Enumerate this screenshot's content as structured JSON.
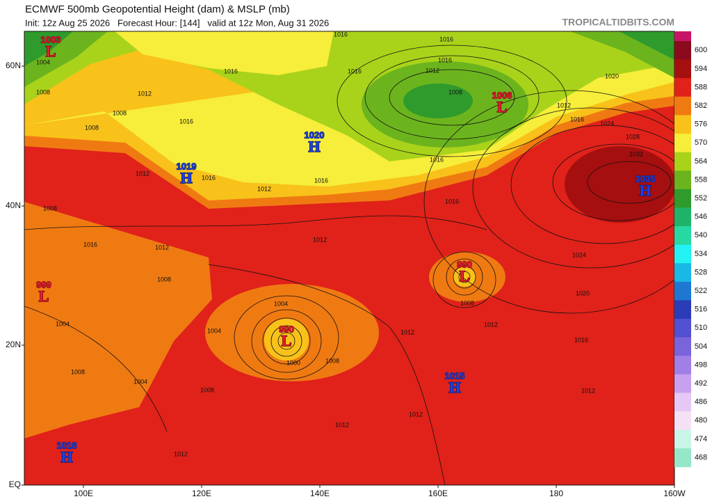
{
  "header": {
    "title": "ECMWF 500mb Geopotential Height (dam) & MSLP (mb)",
    "subtitle": "Init: 12z Aug 25 2026   Forecast Hour: [144]   valid at 12z Mon, Aug 31 2026",
    "credit": "TROPICALTIDBITS.COM"
  },
  "map": {
    "lat_labels": [
      "60N",
      "40N",
      "20N",
      "EQ"
    ],
    "lon_labels": [
      "100E",
      "120E",
      "140E",
      "160E",
      "180",
      "160W"
    ],
    "pressure_centers": [
      {
        "value": 1003,
        "symbol": "L"
      },
      {
        "value": 1006,
        "symbol": "L"
      },
      {
        "value": 1020,
        "symbol": "H"
      },
      {
        "value": 1019,
        "symbol": "H"
      },
      {
        "value": 1035,
        "symbol": "H"
      },
      {
        "value": 990,
        "symbol": "L"
      },
      {
        "value": 990,
        "symbol": "L"
      },
      {
        "value": 1015,
        "symbol": "H"
      },
      {
        "value": 1018,
        "symbol": "H"
      },
      {
        "value": 999,
        "symbol": "L"
      }
    ],
    "contour_labels": [
      1004,
      1008,
      1012,
      1008,
      1008,
      1016,
      1016,
      1016,
      1016,
      1016,
      1016,
      1012,
      1008,
      1012,
      1020,
      1016,
      1024,
      1028,
      1032,
      1016,
      1016,
      1012,
      1016,
      1016,
      1012,
      1008,
      1012,
      1016,
      1012,
      1008,
      1004,
      1004,
      1000,
      1008,
      1008,
      1012,
      1012,
      1024,
      1020,
      1016,
      1012,
      1012,
      1012,
      1008,
      1004,
      1004,
      1012,
      1008
    ]
  },
  "colorbar": {
    "levels": [
      {
        "label": 600,
        "color": "#8b0a1e"
      },
      {
        "label": 594,
        "color": "#a50f0f"
      },
      {
        "label": 588,
        "color": "#e0221a"
      },
      {
        "label": 582,
        "color": "#f07a12"
      },
      {
        "label": 576,
        "color": "#f8c21a"
      },
      {
        "label": 570,
        "color": "#f6ee3a"
      },
      {
        "label": 564,
        "color": "#a9d31a"
      },
      {
        "label": 558,
        "color": "#6cb41e"
      },
      {
        "label": 552,
        "color": "#2e9b2c"
      },
      {
        "label": 546,
        "color": "#1fb36a"
      },
      {
        "label": 540,
        "color": "#26d9a2"
      },
      {
        "label": 534,
        "color": "#22f2f2"
      },
      {
        "label": 528,
        "color": "#1ab8e6"
      },
      {
        "label": 522,
        "color": "#1e78d2"
      },
      {
        "label": 516,
        "color": "#2a3cb8"
      },
      {
        "label": 510,
        "color": "#5050d0"
      },
      {
        "label": 504,
        "color": "#7a64dc"
      },
      {
        "label": 498,
        "color": "#a080e6"
      },
      {
        "label": 492,
        "color": "#c8a0f0"
      },
      {
        "label": 486,
        "color": "#e6c8f5"
      },
      {
        "label": 480,
        "color": "#f5e1f5"
      },
      {
        "label": 474,
        "color": "#c8f5e6"
      },
      {
        "label": 468,
        "color": "#96e6c8"
      }
    ]
  }
}
